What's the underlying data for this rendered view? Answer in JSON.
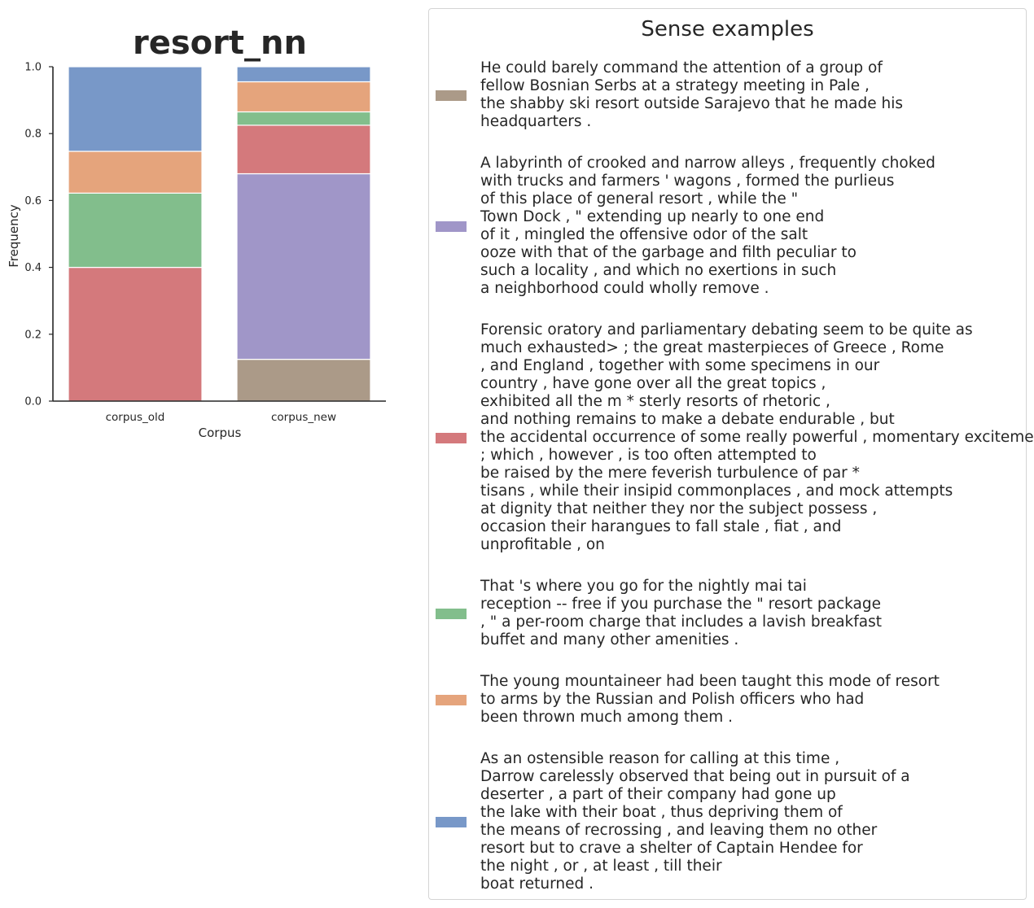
{
  "chart_data": {
    "type": "bar",
    "stacked": true,
    "normalized": true,
    "title": "resort_nn",
    "xlabel": "Corpus",
    "ylabel": "Frequency",
    "ylim": [
      0,
      1.0
    ],
    "yticks": [
      "0.0",
      "0.2",
      "0.4",
      "0.6",
      "0.8",
      "1.0"
    ],
    "categories": [
      "corpus_old",
      "corpus_new"
    ],
    "series": [
      {
        "name": "sense_1",
        "color": "#ab9a88",
        "values": [
          0.0,
          0.125
        ]
      },
      {
        "name": "sense_2",
        "color": "#a096c8",
        "values": [
          0.0,
          0.555
        ]
      },
      {
        "name": "sense_3",
        "color": "#d4797c",
        "values": [
          0.4,
          0.145
        ]
      },
      {
        "name": "sense_4",
        "color": "#82be8c",
        "values": [
          0.222,
          0.04
        ]
      },
      {
        "name": "sense_5",
        "color": "#e5a47c",
        "values": [
          0.125,
          0.09
        ]
      },
      {
        "name": "sense_6",
        "color": "#7898c8",
        "values": [
          0.253,
          0.045
        ]
      }
    ]
  },
  "legend": {
    "title": "Sense examples",
    "entries": [
      {
        "color": "#ab9a88",
        "text": "He could barely command the attention of a group of\nfellow Bosnian Serbs at a strategy meeting in Pale ,\nthe shabby ski resort outside Sarajevo that he made his\nheadquarters ."
      },
      {
        "color": "#a096c8",
        "text": "A labyrinth of crooked and narrow alleys , frequently choked\nwith trucks and farmers ' wagons , formed the purlieus\nof this place of general resort , while the \"\nTown Dock , \" extending up nearly to one end\nof it , mingled the offensive odor of the salt\nooze with that of the garbage and filth peculiar to\nsuch a locality , and which no exertions in such\na neighborhood could wholly remove ."
      },
      {
        "color": "#d4797c",
        "text": "Forensic oratory and parliamentary debating seem to be quite as\nmuch exhausted> ; the great masterpieces of Greece , Rome\n, and England , together with some specimens in our\ncountry , have gone over all the great topics ,\nexhibited all the m * sterly resorts of rhetoric ,\nand nothing remains to make a debate endurable , but\nthe accidental occurrence of some really powerful , momentary excitement\n; which , however , is too often attempted to\nbe raised by the mere feverish turbulence of par *\ntisans , while their insipid commonplaces , and mock attempts\nat dignity that neither they nor the subject possess ,\noccasion their harangues to fall stale , fiat , and\nunprofitable , on"
      },
      {
        "color": "#82be8c",
        "text": "That 's where you go for the nightly mai tai\nreception -- free if you purchase the \" resort package\n, \" a per-room charge that includes a lavish breakfast\nbuffet and many other amenities ."
      },
      {
        "color": "#e5a47c",
        "text": "The young mountaineer had been taught this mode of resort\nto arms by the Russian and Polish officers who had\nbeen thrown much among them ."
      },
      {
        "color": "#7898c8",
        "text": "As an ostensible reason for calling at this time ,\nDarrow carelessly observed that being out in pursuit of a\ndeserter , a part of their company had gone up\nthe lake with their boat , thus depriving them of\nthe means of recrossing , and leaving them no other\nresort but to crave a shelter of Captain Hendee for\nthe night , or , at least , till their\nboat returned ."
      }
    ]
  }
}
